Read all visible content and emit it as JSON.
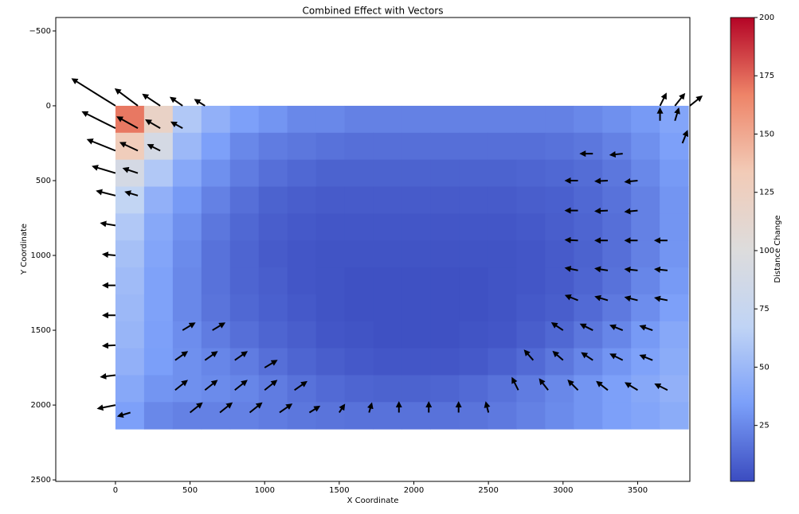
{
  "chart_data": {
    "type": "heatmap-quiver",
    "title": "Combined Effect with Vectors",
    "x_label": "X Coordinate",
    "y_label": "Y Coordinate",
    "xlim": [
      -400,
      3850
    ],
    "ylim": [
      2510,
      -590
    ],
    "xticks": [
      0,
      500,
      1000,
      1500,
      2000,
      2500,
      3000,
      3500
    ],
    "yticks": [
      {
        "value": -500,
        "label": "−500"
      },
      0,
      500,
      1000,
      1500,
      2000,
      2500
    ],
    "x_bins": [
      0,
      192,
      384,
      576,
      768,
      960,
      1152,
      1344,
      1536,
      1728,
      1920,
      2112,
      2304,
      2496,
      2688,
      2880,
      3072,
      3264,
      3456,
      3648,
      3840
    ],
    "y_bins": [
      0,
      180,
      360,
      540,
      720,
      900,
      1080,
      1260,
      1440,
      1620,
      1800,
      1980,
      2160
    ],
    "values": [
      [
        170,
        120,
        60,
        45,
        35,
        30,
        25,
        25,
        22,
        22,
        22,
        22,
        22,
        22,
        22,
        22,
        25,
        28,
        32,
        38
      ],
      [
        130,
        90,
        50,
        35,
        25,
        20,
        18,
        16,
        15,
        15,
        15,
        15,
        15,
        15,
        15,
        16,
        18,
        22,
        28,
        35
      ],
      [
        90,
        60,
        40,
        28,
        20,
        15,
        12,
        10,
        10,
        10,
        10,
        10,
        10,
        10,
        11,
        12,
        14,
        18,
        25,
        32
      ],
      [
        70,
        45,
        32,
        22,
        15,
        10,
        8,
        7,
        7,
        7,
        7,
        7,
        7,
        7,
        8,
        9,
        12,
        16,
        22,
        30
      ],
      [
        60,
        40,
        28,
        18,
        12,
        8,
        6,
        5,
        5,
        5,
        5,
        5,
        5,
        5,
        6,
        8,
        11,
        15,
        22,
        30
      ],
      [
        55,
        38,
        26,
        16,
        11,
        7,
        5,
        4,
        4,
        4,
        4,
        4,
        4,
        4,
        5,
        7,
        10,
        15,
        22,
        30
      ],
      [
        52,
        36,
        25,
        16,
        11,
        8,
        5,
        4,
        3,
        3,
        3,
        3,
        3,
        4,
        5,
        7,
        11,
        16,
        24,
        32
      ],
      [
        50,
        36,
        25,
        17,
        12,
        9,
        6,
        4,
        3,
        3,
        3,
        3,
        3,
        4,
        6,
        8,
        13,
        19,
        27,
        35
      ],
      [
        48,
        35,
        27,
        20,
        15,
        11,
        8,
        5,
        4,
        3,
        3,
        3,
        4,
        5,
        8,
        12,
        18,
        24,
        32,
        40
      ],
      [
        45,
        34,
        28,
        24,
        20,
        15,
        11,
        8,
        6,
        5,
        5,
        5,
        6,
        9,
        13,
        18,
        24,
        30,
        36,
        42
      ],
      [
        40,
        30,
        28,
        26,
        24,
        20,
        16,
        13,
        11,
        10,
        10,
        11,
        13,
        16,
        20,
        25,
        30,
        35,
        40,
        45
      ],
      [
        35,
        25,
        22,
        22,
        22,
        20,
        18,
        17,
        16,
        16,
        16,
        16,
        17,
        19,
        22,
        26,
        30,
        35,
        38,
        42
      ]
    ],
    "colormap": [
      "#3b4cc0",
      "#7b9ff9",
      "#c0d4f5",
      "#dddcdc",
      "#f2cbb7",
      "#ee8468",
      "#b40426"
    ],
    "clim": [
      1,
      200
    ],
    "colorbar_label": "Distance Change",
    "colorbar_ticks": [
      25,
      50,
      75,
      100,
      125,
      150,
      175,
      200
    ],
    "vector_color": "#000000",
    "vectors": {
      "x": [
        0,
        150,
        300,
        450,
        600,
        0,
        150,
        300,
        450,
        0,
        150,
        300,
        0,
        150,
        0,
        150,
        0,
        0,
        0,
        0,
        0,
        0,
        0,
        100,
        450,
        650,
        400,
        600,
        800,
        1000,
        400,
        600,
        800,
        1000,
        1200,
        500,
        700,
        900,
        1100,
        1300,
        1500,
        1700,
        1900,
        2100,
        2300,
        2500,
        2700,
        2900,
        3100,
        3300,
        3500,
        3700,
        2800,
        3000,
        3200,
        3400,
        3600,
        3000,
        3200,
        3400,
        3600,
        3100,
        3300,
        3500,
        3700,
        3100,
        3300,
        3500,
        3700,
        3100,
        3300,
        3500,
        3700,
        3100,
        3300,
        3500,
        3100,
        3300,
        3500,
        3200,
        3400,
        3650,
        3750,
        3850,
        3650,
        3750,
        3800
      ],
      "y": [
        0,
        0,
        0,
        0,
        0,
        150,
        150,
        150,
        150,
        300,
        300,
        300,
        450,
        450,
        600,
        600,
        800,
        1000,
        1200,
        1400,
        1600,
        1800,
        2000,
        2050,
        1500,
        1500,
        1700,
        1700,
        1700,
        1750,
        1900,
        1900,
        1900,
        1900,
        1900,
        2050,
        2050,
        2050,
        2050,
        2050,
        2050,
        2050,
        2050,
        2050,
        2050,
        2050,
        1900,
        1900,
        1900,
        1900,
        1900,
        1900,
        1700,
        1700,
        1700,
        1700,
        1700,
        1500,
        1500,
        1500,
        1500,
        1300,
        1300,
        1300,
        1300,
        1100,
        1100,
        1100,
        1100,
        900,
        900,
        900,
        900,
        700,
        700,
        700,
        500,
        500,
        500,
        320,
        320,
        0,
        0,
        0,
        100,
        100,
        250
      ],
      "u": [
        -4,
        -2,
        -1.5,
        -1,
        -0.8,
        -3,
        -1.8,
        -1.2,
        -0.9,
        -2.5,
        -1.5,
        -1,
        -2,
        -1.2,
        -1.6,
        -1,
        -1.2,
        -1,
        -1,
        -1,
        -1,
        -1.2,
        -1.5,
        -1,
        1,
        1,
        1,
        1,
        1,
        1,
        1,
        1,
        1,
        1,
        1,
        1,
        1,
        1,
        1,
        0.8,
        0.4,
        0.2,
        0,
        0,
        0,
        -0.2,
        -0.5,
        -0.7,
        -0.8,
        -0.9,
        -1,
        -1,
        -0.7,
        -0.8,
        -0.9,
        -1,
        -1,
        -0.9,
        -1,
        -1,
        -1,
        -1,
        -1,
        -1,
        -1,
        -1,
        -1,
        -1,
        -1,
        -1,
        -1,
        -1,
        -1,
        -1,
        -1,
        -1,
        -1,
        -1,
        -1,
        -1,
        -1,
        0.5,
        0.8,
        1,
        0,
        0.3,
        0.4
      ],
      "v": [
        -2.5,
        -1.5,
        -1,
        -0.7,
        -0.5,
        -1.5,
        -1,
        -0.7,
        -0.5,
        -1,
        -0.7,
        -0.5,
        -0.6,
        -0.4,
        -0.4,
        -0.3,
        -0.2,
        -0.1,
        0,
        0,
        0.05,
        0.15,
        0.3,
        0.3,
        -0.6,
        -0.6,
        -0.7,
        -0.7,
        -0.7,
        -0.6,
        -0.8,
        -0.8,
        -0.8,
        -0.8,
        -0.7,
        -0.8,
        -0.8,
        -0.8,
        -0.7,
        -0.5,
        -0.6,
        -0.7,
        -0.8,
        -0.8,
        -0.8,
        -0.8,
        -1,
        -0.9,
        -0.8,
        -0.7,
        -0.6,
        -0.5,
        -0.8,
        -0.7,
        -0.6,
        -0.5,
        -0.4,
        -0.6,
        -0.5,
        -0.4,
        -0.35,
        -0.4,
        -0.3,
        -0.25,
        -0.2,
        -0.2,
        -0.15,
        -0.1,
        -0.1,
        -0.05,
        0,
        0,
        0,
        0,
        0.05,
        0.1,
        0,
        0.05,
        0.1,
        0,
        0.1,
        -1,
        -1,
        -0.8,
        -1,
        -1,
        -1
      ]
    }
  }
}
